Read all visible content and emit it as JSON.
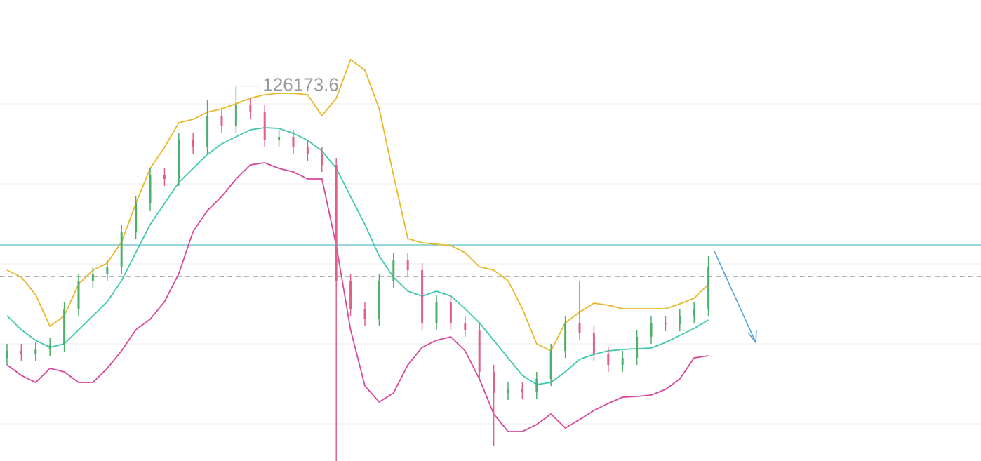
{
  "chart_data": {
    "type": "candlestick",
    "ylim": [
      104800,
      131080
    ],
    "grid_levels": [
      125160,
      120600,
      116040,
      111480,
      106920
    ],
    "up_color": "#4caf6a",
    "down_color": "#e06088",
    "high_marker": 126173.6,
    "categories": [
      null,
      null,
      null,
      null,
      null,
      null,
      null,
      null,
      null,
      null,
      null,
      null,
      null,
      null,
      null,
      null,
      null,
      null,
      null,
      null,
      null,
      null,
      null,
      null,
      null,
      null,
      null,
      null,
      null,
      null,
      null,
      null,
      null,
      null,
      null,
      null,
      null,
      null,
      null,
      null,
      null,
      null,
      null,
      null,
      null,
      null,
      null,
      null,
      null,
      null
    ],
    "open": [
      110680,
      111080,
      110880,
      111160,
      111400,
      113480,
      115080,
      115480,
      115880,
      117880,
      119480,
      121080,
      120880,
      123080,
      122680,
      124480,
      123880,
      125080,
      124680,
      123080,
      123280,
      122680,
      122280,
      121680,
      115080,
      113480,
      112880,
      115080,
      116280,
      115680,
      112680,
      113880,
      112680,
      112280,
      109880,
      108680,
      108880,
      108760,
      109480,
      111080,
      112680,
      112080,
      110880,
      110280,
      110680,
      111880,
      112680,
      112600,
      113080,
      113480
    ],
    "high": [
      111480,
      111480,
      111560,
      111800,
      113880,
      115480,
      115880,
      116280,
      118280,
      119880,
      121480,
      121480,
      123480,
      123480,
      125400,
      124880,
      126173.6,
      125480,
      125080,
      123680,
      123680,
      123080,
      122680,
      122080,
      115480,
      113880,
      115480,
      116680,
      116680,
      116080,
      114280,
      114280,
      113080,
      112680,
      110280,
      109280,
      109280,
      109880,
      111480,
      113080,
      115080,
      112480,
      111280,
      111080,
      112280,
      113080,
      113080,
      113480,
      113880,
      116480
    ],
    "low": [
      110280,
      110480,
      110480,
      110760,
      111000,
      113080,
      114680,
      115080,
      115480,
      117480,
      119080,
      120480,
      120480,
      122280,
      122280,
      123480,
      123480,
      124280,
      122680,
      122680,
      122280,
      121880,
      121280,
      104800,
      113080,
      112480,
      112480,
      114680,
      115280,
      112280,
      112280,
      112280,
      111880,
      109480,
      105680,
      108280,
      108360,
      108360,
      109080,
      110680,
      111680,
      110480,
      109880,
      109880,
      110280,
      111480,
      112200,
      112200,
      112680,
      113080
    ],
    "close": [
      111080,
      110880,
      111160,
      111400,
      113480,
      115080,
      115480,
      115880,
      117880,
      119480,
      121080,
      120880,
      123080,
      122680,
      124480,
      123880,
      125080,
      124680,
      123080,
      123280,
      122680,
      122280,
      121680,
      115080,
      113480,
      112880,
      115080,
      116280,
      115680,
      112680,
      113880,
      112680,
      112280,
      109880,
      108680,
      108880,
      108760,
      109480,
      111080,
      112680,
      112080,
      110880,
      110280,
      110680,
      111880,
      112680,
      112600,
      113080,
      113480,
      115880
    ],
    "overlays": [
      {
        "color": "#e8b82a",
        "values": [
          115680,
          115280,
          114280,
          112480,
          113080,
          114880,
          115680,
          116080,
          117280,
          119480,
          121480,
          122680,
          124080,
          124280,
          124680,
          124880,
          125160,
          125480,
          125680,
          125760,
          125760,
          125680,
          124480,
          125480,
          127680,
          127080,
          124880,
          121080,
          117480,
          117240,
          117160,
          117080,
          116680,
          115880,
          115680,
          115080,
          113480,
          111480,
          111080,
          112680,
          113280,
          113800,
          113680,
          113480,
          113480,
          113480,
          113480,
          113760,
          114080,
          114880
        ]
      },
      {
        "color": "#3ec9b0",
        "values": [
          113080,
          112280,
          111680,
          111280,
          111480,
          112280,
          113080,
          113880,
          115080,
          116680,
          118280,
          119480,
          120680,
          121480,
          122280,
          122880,
          123280,
          123680,
          123800,
          123760,
          123480,
          123080,
          122480,
          121480,
          119880,
          118280,
          116480,
          115280,
          114480,
          114200,
          114480,
          114200,
          113480,
          112680,
          111680,
          110680,
          109680,
          109160,
          109280,
          109880,
          110600,
          110880,
          111080,
          111160,
          111200,
          111240,
          111560,
          111960,
          112360,
          112840
        ]
      },
      {
        "color": "#d9479a",
        "values": [
          110280,
          109680,
          109280,
          110080,
          109880,
          109280,
          109280,
          110080,
          111080,
          112280,
          112880,
          113880,
          115480,
          117880,
          119080,
          119880,
          120880,
          121680,
          121800,
          121480,
          121280,
          120880,
          120880,
          117080,
          112280,
          109080,
          108160,
          108680,
          110280,
          111280,
          111680,
          111880,
          111080,
          109480,
          107480,
          106480,
          106480,
          106880,
          107480,
          106680,
          107160,
          107680,
          108080,
          108440,
          108480,
          108560,
          108880,
          109480,
          110680,
          110800
        ]
      }
    ],
    "levels": [
      {
        "value": 117120,
        "color": "#5cbdc0",
        "style": "solid"
      },
      {
        "value": 115320,
        "color": "#8a8a8a",
        "style": "dashed"
      }
    ]
  }
}
